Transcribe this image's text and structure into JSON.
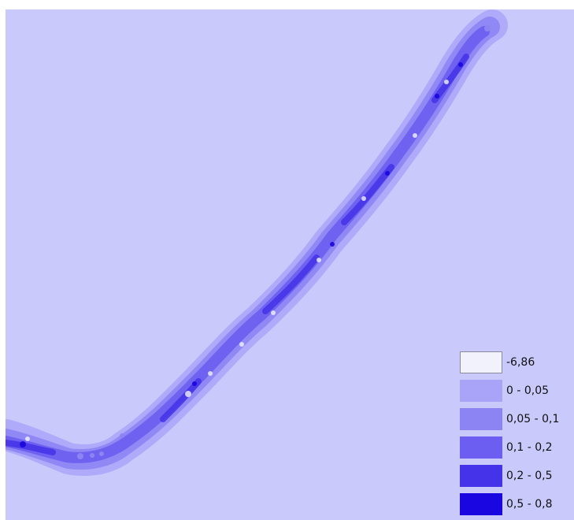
{
  "map": {
    "background_color": "#c9c9fb",
    "class_colors": [
      "#f2f2fd",
      "#aaa4f8",
      "#8d84f4",
      "#6b5ef0",
      "#4433e8",
      "#1a06e0"
    ]
  },
  "legend": {
    "items": [
      {
        "label": "-6,86",
        "color": "#f2f2fd",
        "border": "#8a8a9a"
      },
      {
        "label": "0 - 0,05",
        "color": "#aaa4f8",
        "border": "#aaa4f8"
      },
      {
        "label": "0,05 - 0,1",
        "color": "#8d84f4",
        "border": "#8d84f4"
      },
      {
        "label": "0,1 - 0,2",
        "color": "#6b5ef0",
        "border": "#6b5ef0"
      },
      {
        "label": "0,2 - 0,5",
        "color": "#4433e8",
        "border": "#4433e8"
      },
      {
        "label": "0,5 - 0,8",
        "color": "#1a06e0",
        "border": "#1a06e0"
      }
    ]
  }
}
